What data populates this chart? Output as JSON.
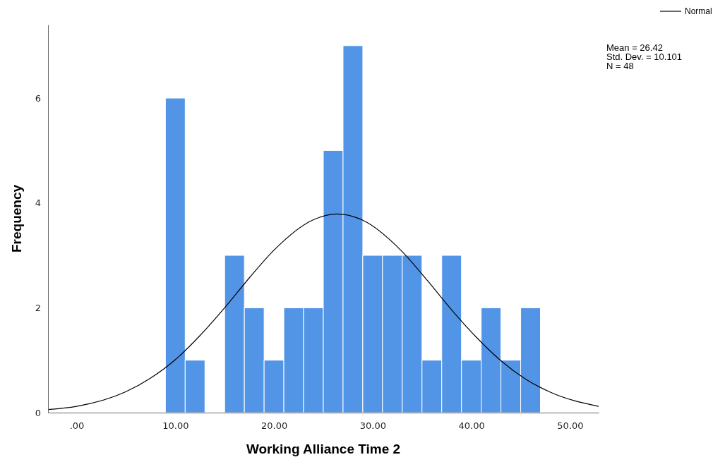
{
  "chart_data": {
    "type": "histogram",
    "xlabel": "Working Alliance Time 2",
    "ylabel": "Frequency",
    "bins": [
      9,
      11,
      13,
      15,
      17,
      19,
      21,
      23,
      25,
      27,
      29,
      31,
      33,
      35,
      37,
      39,
      41,
      43,
      45,
      47
    ],
    "series": [
      {
        "color": "#5294e6",
        "values": [
          6,
          1,
          0,
          3,
          2,
          1,
          2,
          2,
          5,
          7,
          3,
          3,
          3,
          1,
          3,
          1,
          2,
          1,
          2
        ]
      },
      {
        "type": "line",
        "name": "Normal",
        "color": "#000000",
        "x": [
          -2.9,
          0,
          5,
          7.5,
          10,
          12.5,
          15,
          17.5,
          20,
          24,
          26.42,
          29,
          33,
          35.5,
          38,
          40.5,
          43,
          45.5,
          48,
          52.9
        ],
        "values": [
          0.06,
          0.12,
          0.4,
          0.66,
          1.01,
          1.47,
          2.0,
          2.57,
          3.1,
          3.68,
          3.79,
          3.67,
          3.07,
          2.53,
          1.96,
          1.44,
          0.99,
          0.64,
          0.39,
          0.12
        ]
      }
    ],
    "xlim": [
      -2.9,
      52.9
    ],
    "xticks": [
      {
        "value": 0,
        "label": ".00"
      },
      {
        "value": 10,
        "label": "10.00"
      },
      {
        "value": 20,
        "label": "20.00"
      },
      {
        "value": 30,
        "label": "30.00"
      },
      {
        "value": 40,
        "label": "40.00"
      },
      {
        "value": 50,
        "label": "50.00"
      }
    ],
    "ylim": [
      0,
      7.4
    ],
    "yticks": [
      0,
      2,
      4,
      6
    ],
    "legend": "top right",
    "marker": "none",
    "line_style": "solid",
    "annotations": [
      "Mean = 26.42",
      "Std. Dev. = 10.101",
      "N = 48"
    ]
  }
}
